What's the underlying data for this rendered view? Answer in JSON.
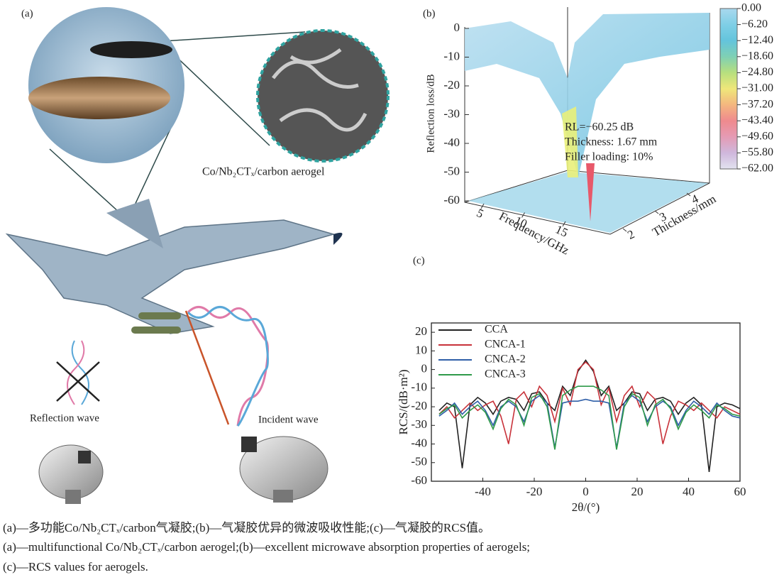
{
  "panel_a": {
    "label": "(a)",
    "inset_caption": "Co/Nb₂CTₓ/carbon aerogel",
    "reflection_label": "Reflection wave",
    "incident_label": "Incident wave"
  },
  "chart_data": [
    {
      "type": "surface3d",
      "panel_label": "(b)",
      "zlabel": "Reflection loss/dB",
      "xlabel": "Frequency/GHz",
      "ylabel": "Thickness/mm",
      "zlim": [
        -62,
        0
      ],
      "zticks": [
        0,
        -10,
        -20,
        -30,
        -40,
        -50,
        -60
      ],
      "xticks": [
        5,
        10,
        15
      ],
      "yticks": [
        2,
        3,
        4
      ],
      "annotations": [
        "RL=−60.25 dB",
        "Thickness: 1.67 mm",
        "Filler loading: 10%"
      ],
      "colorbar_lim": [
        -62,
        0
      ],
      "colorbar_ticks": [
        {
          "value": 0,
          "label": "0.00"
        },
        {
          "value": -6.2,
          "label": "−6.20"
        },
        {
          "value": -12.4,
          "label": "−12.40"
        },
        {
          "value": -18.6,
          "label": "−18.60"
        },
        {
          "value": -24.8,
          "label": "−24.80"
        },
        {
          "value": -31,
          "label": "−31.00"
        },
        {
          "value": -37.2,
          "label": "−37.20"
        },
        {
          "value": -43.4,
          "label": "−43.40"
        },
        {
          "value": -49.6,
          "label": "−49.60"
        },
        {
          "value": -55.8,
          "label": "−55.80"
        },
        {
          "value": -62,
          "label": "−62.00"
        }
      ],
      "colorbar_colors": [
        "#a9d8ee",
        "#7fcfe6",
        "#64c4dc",
        "#7fd0b4",
        "#b7df7e",
        "#efe77a",
        "#f4b77f",
        "#ef8a8e",
        "#e59bb4",
        "#cfb7dc",
        "#e2e2ef"
      ]
    },
    {
      "type": "line",
      "panel_label": "(c)",
      "xlabel": "2θ/(°)",
      "ylabel": "RCS/(dB·m²)",
      "xlim": [
        -60,
        60
      ],
      "ylim": [
        -60,
        25
      ],
      "xticks": [
        -40,
        -20,
        0,
        20,
        40,
        60
      ],
      "yticks": [
        -60,
        -50,
        -40,
        -30,
        -20,
        -10,
        0,
        10,
        20
      ],
      "x": [
        -57,
        -54,
        -51,
        -48,
        -45,
        -42,
        -39,
        -36,
        -33,
        -30,
        -27,
        -24,
        -21,
        -18,
        -15,
        -12,
        -9,
        -6,
        -3,
        0,
        3,
        6,
        9,
        12,
        15,
        18,
        21,
        24,
        27,
        30,
        33,
        36,
        39,
        42,
        45,
        48,
        51,
        54,
        57,
        60
      ],
      "series": [
        {
          "name": "CCA",
          "color": "#222222",
          "values": [
            -22,
            -18,
            -20,
            -53,
            -19,
            -15,
            -18,
            -24,
            -17,
            -15,
            -16,
            -22,
            -13,
            -12,
            -18,
            -22,
            -9,
            -14,
            -1,
            5,
            -1,
            -14,
            -9,
            -22,
            -18,
            -12,
            -13,
            -22,
            -16,
            -15,
            -17,
            -24,
            -18,
            -15,
            -19,
            -55,
            -20,
            -18,
            -19,
            -21
          ]
        },
        {
          "name": "CNCA-1",
          "color": "#c8323a",
          "values": [
            -24,
            -20,
            -26,
            -22,
            -18,
            -22,
            -19,
            -17,
            -25,
            -40,
            -16,
            -12,
            -20,
            -9,
            -14,
            -28,
            -10,
            -19,
            0,
            4,
            0,
            -19,
            -10,
            -28,
            -14,
            -9,
            -20,
            -12,
            -16,
            -40,
            -25,
            -17,
            -19,
            -22,
            -18,
            -22,
            -26,
            -20,
            -22,
            -24
          ]
        },
        {
          "name": "CNCA-2",
          "color": "#2f5fa8",
          "values": [
            -25,
            -22,
            -18,
            -24,
            -20,
            -17,
            -22,
            -30,
            -20,
            -17,
            -20,
            -28,
            -17,
            -14,
            -18,
            -42,
            -18,
            -17,
            -17,
            -16,
            -17,
            -17,
            -18,
            -42,
            -18,
            -14,
            -17,
            -28,
            -20,
            -17,
            -20,
            -30,
            -22,
            -17,
            -20,
            -24,
            -18,
            -22,
            -25,
            -26
          ]
        },
        {
          "name": "CNCA-3",
          "color": "#2f9a4a",
          "values": [
            -24,
            -21,
            -19,
            -26,
            -22,
            -19,
            -23,
            -32,
            -21,
            -16,
            -19,
            -30,
            -15,
            -13,
            -20,
            -43,
            -14,
            -11,
            -9,
            -9,
            -9,
            -11,
            -14,
            -43,
            -20,
            -13,
            -15,
            -30,
            -19,
            -16,
            -21,
            -32,
            -23,
            -19,
            -22,
            -26,
            -19,
            -21,
            -24,
            -25
          ]
        }
      ]
    }
  ],
  "caption": [
    "(a)—多功能Co/Nb₂CTₓ/carbon气凝胶;(b)—气凝胶优异的微波吸收性能;(c)—气凝胶的RCS值。",
    "(a)—multifunctional Co/Nb₂CTₓ/carbon aerogel;(b)—excellent microwave absorption properties of aerogels;",
    "(c)—RCS values for aerogels."
  ]
}
